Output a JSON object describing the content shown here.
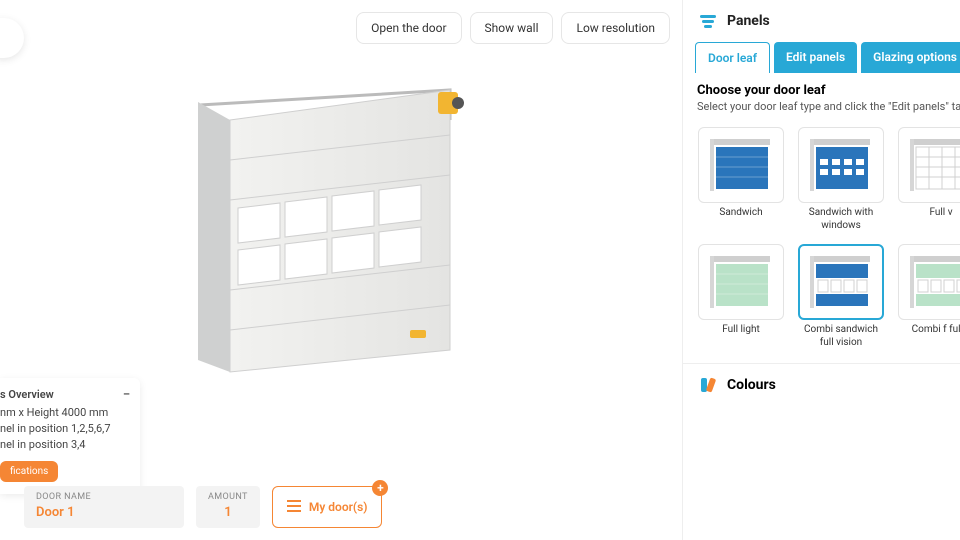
{
  "colors": {
    "accent": "#f58634",
    "tab": "#28a8d6",
    "panelBlue": "#2a75bb",
    "panelGreen": "#b9e2c8",
    "panelGrey": "#d9dadb"
  },
  "controls": {
    "open": "Open the door",
    "wall": "Show wall",
    "res": "Low resolution"
  },
  "spec": {
    "title": "s Overview",
    "line1": "nm x Height 4000 mm",
    "line2": "nel in position 1,2,5,6,7",
    "line3": "nel in position 3,4",
    "btn": "fications"
  },
  "bottom": {
    "name_label": "DOOR NAME",
    "name_value": "Door 1",
    "amount_label": "AMOUNT",
    "amount_value": "1",
    "mydoors": "My door(s)"
  },
  "side": {
    "panels_title": "Panels",
    "tabs": {
      "leaf": "Door leaf",
      "edit": "Edit panels",
      "glaze": "Glazing options"
    },
    "choose_title": "Choose your door leaf",
    "choose_desc": "Select your door leaf type and click the \"Edit panels\" tab to ad",
    "options": [
      {
        "id": "sandwich",
        "label": "Sandwich",
        "kind": "solid",
        "color": "#2a75bb"
      },
      {
        "id": "sandwich-windows",
        "label": "Sandwich with windows",
        "kind": "smallwin",
        "color": "#2a75bb"
      },
      {
        "id": "full-vision",
        "label": "Full v",
        "kind": "gridlines",
        "color": "#d9dadb"
      },
      {
        "id": "full-light",
        "label": "Full light",
        "kind": "solid",
        "color": "#b9e2c8"
      },
      {
        "id": "combi-sandwich-fv",
        "label": "Combi sandwich full vision",
        "kind": "combi",
        "color": "#2a75bb",
        "selected": true
      },
      {
        "id": "combi-fl-fv",
        "label": "Combi f full v",
        "kind": "combi",
        "color": "#b9e2c8"
      }
    ],
    "colours_title": "Colours"
  }
}
